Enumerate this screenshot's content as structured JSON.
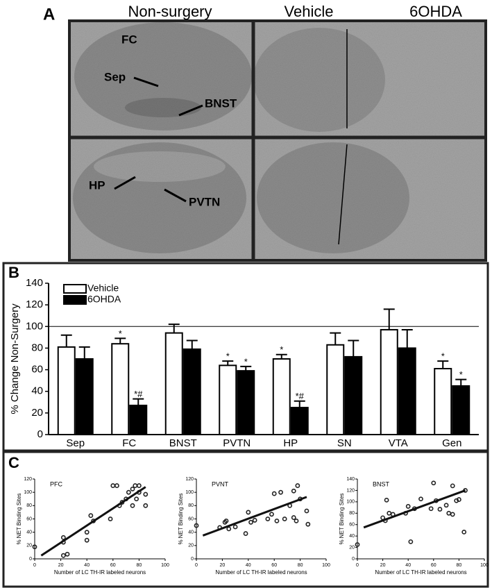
{
  "panels": [
    "A",
    "B",
    "C"
  ],
  "panel_a": {
    "column_titles": [
      "Non-surgery",
      "Vehicle",
      "6OHDA"
    ],
    "regions": [
      "FC",
      "Sep",
      "BNST",
      "HP",
      "PVTN"
    ]
  },
  "chart_data": [
    {
      "type": "bar",
      "ylabel": "% Change Non-Surgery",
      "categories": [
        "Sep",
        "FC",
        "BNST",
        "PVTN",
        "HP",
        "SN",
        "VTA",
        "Gen"
      ],
      "series": [
        {
          "name": "Vehicle",
          "color": "#ffffff",
          "values": [
            81,
            84,
            94,
            64,
            70,
            83,
            97,
            61
          ],
          "errors": [
            11,
            5,
            8,
            4,
            4,
            11,
            19,
            7
          ],
          "annotations": [
            null,
            "*",
            null,
            "*",
            "*",
            null,
            null,
            "*"
          ]
        },
        {
          "name": "6OHDA",
          "color": "#000000",
          "values": [
            70,
            27,
            79,
            59,
            25,
            72,
            80,
            45
          ],
          "errors": [
            11,
            6,
            8,
            4,
            6,
            15,
            17,
            6
          ],
          "annotations": [
            null,
            "*#",
            null,
            "*",
            "*#",
            null,
            null,
            "*"
          ]
        }
      ],
      "reference_line": 100,
      "ylim": [
        0,
        140
      ],
      "yticks": [
        0,
        20,
        40,
        60,
        80,
        100,
        120,
        140
      ],
      "legend": "top-left"
    },
    {
      "type": "scatter",
      "title": "PFC",
      "xlabel": "Number of LC TH-IR labeled neurons",
      "ylabel": "% NET Binding Sites",
      "color": "#222222",
      "x": [
        0,
        22,
        22,
        22,
        25,
        40,
        40,
        43,
        45,
        58,
        60,
        63,
        65,
        67,
        70,
        72,
        75,
        75,
        77,
        78,
        80,
        80,
        85,
        85
      ],
      "values": [
        18,
        5,
        25,
        32,
        7,
        40,
        28,
        65,
        57,
        60,
        110,
        110,
        80,
        85,
        90,
        100,
        105,
        80,
        110,
        90,
        110,
        100,
        80,
        97
      ],
      "trend": {
        "x": [
          5,
          85
        ],
        "y": [
          5,
          108
        ]
      },
      "xlim": [
        0,
        100
      ],
      "xticks": [
        0,
        20,
        40,
        60,
        80,
        100
      ],
      "ylim": [
        0,
        120
      ],
      "yticks": [
        0,
        20,
        40,
        60,
        80,
        100,
        120
      ]
    },
    {
      "type": "scatter",
      "title": "PVNT",
      "xlabel": "Number of LC TH-IR labeled neurons",
      "ylabel": "% NET Binding Sites",
      "color": "#222222",
      "x": [
        0,
        18,
        22,
        23,
        25,
        30,
        38,
        40,
        42,
        45,
        55,
        58,
        60,
        62,
        65,
        68,
        72,
        75,
        75,
        77,
        78,
        80,
        85,
        86
      ],
      "values": [
        50,
        47,
        55,
        57,
        45,
        48,
        38,
        70,
        55,
        58,
        60,
        67,
        98,
        57,
        100,
        60,
        80,
        62,
        102,
        57,
        110,
        90,
        72,
        52
      ],
      "trend": {
        "x": [
          5,
          85
        ],
        "y": [
          35,
          93
        ]
      },
      "xlim": [
        0,
        100
      ],
      "xticks": [
        0,
        20,
        40,
        60,
        80,
        100
      ],
      "ylim": [
        0,
        120
      ],
      "yticks": [
        0,
        20,
        40,
        60,
        80,
        100,
        120
      ]
    },
    {
      "type": "scatter",
      "title": "BNST",
      "xlabel": "Number of LC TH-IR labeled neurons",
      "ylabel": "% NET Binding Sites",
      "color": "#222222",
      "x": [
        0,
        20,
        22,
        23,
        25,
        28,
        38,
        40,
        42,
        45,
        50,
        58,
        60,
        62,
        65,
        70,
        72,
        75,
        75,
        78,
        80,
        84,
        85
      ],
      "values": [
        25,
        72,
        67,
        103,
        80,
        78,
        80,
        92,
        30,
        88,
        105,
        88,
        133,
        102,
        87,
        94,
        80,
        78,
        128,
        102,
        104,
        47,
        120
      ],
      "trend": {
        "x": [
          5,
          85
        ],
        "y": [
          55,
          120
        ]
      },
      "xlim": [
        0,
        100
      ],
      "xticks": [
        0,
        20,
        40,
        60,
        80,
        100
      ],
      "ylim": [
        0,
        140
      ],
      "yticks": [
        0,
        20,
        40,
        60,
        80,
        100,
        120,
        140
      ]
    }
  ]
}
